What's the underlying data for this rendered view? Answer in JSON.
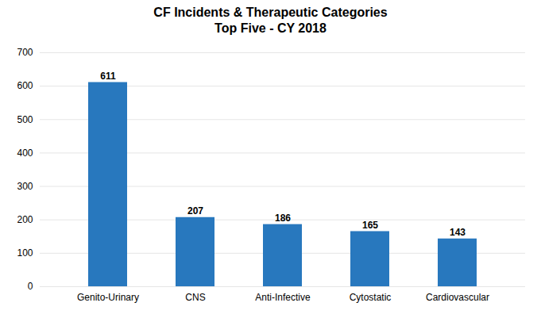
{
  "chart_data": {
    "type": "bar",
    "title": "CF Incidents & Therapeutic Categories",
    "subtitle": "Top Five - CY 2018",
    "categories": [
      "Genito-Urinary",
      "CNS",
      "Anti-Infective",
      "Cytostatic",
      "Cardiovascular"
    ],
    "values": [
      611,
      207,
      186,
      165,
      143
    ],
    "color": "#2878be",
    "ylim": [
      0,
      700
    ],
    "yticks": [
      0,
      100,
      200,
      300,
      400,
      500,
      600,
      700
    ],
    "grid": true,
    "data_labels": true
  }
}
